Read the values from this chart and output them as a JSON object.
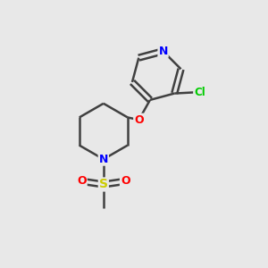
{
  "background_color": "#e8e8e8",
  "atom_colors": {
    "N": "#0000FF",
    "O": "#FF0000",
    "S": "#CCCC00",
    "Cl": "#00CC00",
    "C": "#404040"
  },
  "bond_color": "#404040",
  "bond_width": 1.8,
  "figsize": [
    3.0,
    3.0
  ],
  "dpi": 100
}
